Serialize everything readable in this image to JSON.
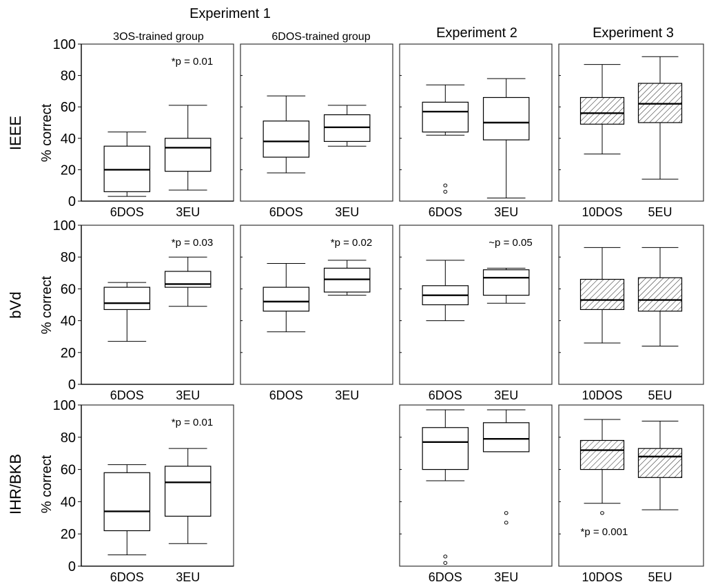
{
  "headers": {
    "experiment1": "Experiment 1",
    "experiment1_group_a": "3OS-trained group",
    "experiment1_group_b": "6DOS-trained group",
    "experiment2": "Experiment 2",
    "experiment3": "Experiment 3"
  },
  "row_labels": [
    "IEEE",
    "bVd",
    "IHR/BKB"
  ],
  "ylabel": "% correct",
  "colors": {
    "box_plain": "#ffffff",
    "box_hatched": "#d8d8d8",
    "line": "#000000"
  },
  "chart_data": [
    {
      "type": "box",
      "row": "IEEE",
      "column": "3OS-trained group",
      "ylim": [
        0,
        100
      ],
      "yticks": [
        0,
        20,
        40,
        60,
        80,
        100
      ],
      "categories": [
        "6DOS",
        "3EU"
      ],
      "annotation": "*p = 0.01",
      "annotation_position": "top-right",
      "boxes": [
        {
          "label": "6DOS",
          "min": 3,
          "q1": 6,
          "median": 20,
          "q3": 35,
          "max": 44,
          "outliers": [],
          "hatched": false
        },
        {
          "label": "3EU",
          "min": 7,
          "q1": 19,
          "median": 34,
          "q3": 40,
          "max": 61,
          "outliers": [],
          "hatched": false
        }
      ]
    },
    {
      "type": "box",
      "row": "IEEE",
      "column": "6DOS-trained group",
      "ylim": [
        0,
        100
      ],
      "categories": [
        "6DOS",
        "3EU"
      ],
      "annotation": "",
      "boxes": [
        {
          "label": "6DOS",
          "min": 18,
          "q1": 28,
          "median": 38,
          "q3": 51,
          "max": 67,
          "outliers": [],
          "hatched": false
        },
        {
          "label": "3EU",
          "min": 35,
          "q1": 38,
          "median": 47,
          "q3": 55,
          "max": 61,
          "outliers": [],
          "hatched": false
        }
      ]
    },
    {
      "type": "box",
      "row": "IEEE",
      "column": "Experiment 2",
      "ylim": [
        0,
        100
      ],
      "categories": [
        "6DOS",
        "3EU"
      ],
      "annotation": "",
      "boxes": [
        {
          "label": "6DOS",
          "min": 42,
          "q1": 44,
          "median": 57,
          "q3": 63,
          "max": 74,
          "outliers": [
            10,
            6
          ],
          "hatched": false
        },
        {
          "label": "3EU",
          "min": 2,
          "q1": 39,
          "median": 50,
          "q3": 66,
          "max": 78,
          "outliers": [],
          "hatched": false
        }
      ]
    },
    {
      "type": "box",
      "row": "IEEE",
      "column": "Experiment 3",
      "ylim": [
        0,
        100
      ],
      "categories": [
        "10DOS",
        "5EU"
      ],
      "annotation": "",
      "boxes": [
        {
          "label": "10DOS",
          "min": 30,
          "q1": 49,
          "median": 56,
          "q3": 66,
          "max": 87,
          "outliers": [],
          "hatched": true
        },
        {
          "label": "5EU",
          "min": 14,
          "q1": 50,
          "median": 62,
          "q3": 75,
          "max": 92,
          "outliers": [],
          "hatched": true
        }
      ]
    },
    {
      "type": "box",
      "row": "bVd",
      "column": "3OS-trained group",
      "ylim": [
        0,
        100
      ],
      "yticks": [
        0,
        20,
        40,
        60,
        80,
        100
      ],
      "categories": [
        "6DOS",
        "3EU"
      ],
      "annotation": "*p = 0.03",
      "annotation_position": "top-right",
      "boxes": [
        {
          "label": "6DOS",
          "min": 27,
          "q1": 47,
          "median": 51,
          "q3": 61,
          "max": 64,
          "outliers": [],
          "hatched": false
        },
        {
          "label": "3EU",
          "min": 49,
          "q1": 61,
          "median": 63,
          "q3": 71,
          "max": 80,
          "outliers": [],
          "hatched": false
        }
      ]
    },
    {
      "type": "box",
      "row": "bVd",
      "column": "6DOS-trained group",
      "ylim": [
        0,
        100
      ],
      "categories": [
        "6DOS",
        "3EU"
      ],
      "annotation": "*p = 0.02",
      "annotation_position": "top-right",
      "boxes": [
        {
          "label": "6DOS",
          "min": 33,
          "q1": 46,
          "median": 52,
          "q3": 61,
          "max": 76,
          "outliers": [],
          "hatched": false
        },
        {
          "label": "3EU",
          "min": 56,
          "q1": 58,
          "median": 66,
          "q3": 73,
          "max": 78,
          "outliers": [],
          "hatched": false
        }
      ]
    },
    {
      "type": "box",
      "row": "bVd",
      "column": "Experiment 2",
      "ylim": [
        0,
        100
      ],
      "categories": [
        "6DOS",
        "3EU"
      ],
      "annotation": "~p = 0.05",
      "annotation_position": "top-right",
      "boxes": [
        {
          "label": "6DOS",
          "min": 40,
          "q1": 50,
          "median": 56,
          "q3": 62,
          "max": 78,
          "outliers": [],
          "hatched": false
        },
        {
          "label": "3EU",
          "min": 51,
          "q1": 56,
          "median": 67,
          "q3": 72,
          "max": 73,
          "outliers": [],
          "hatched": false
        }
      ]
    },
    {
      "type": "box",
      "row": "bVd",
      "column": "Experiment 3",
      "ylim": [
        0,
        100
      ],
      "categories": [
        "10DOS",
        "5EU"
      ],
      "annotation": "",
      "boxes": [
        {
          "label": "10DOS",
          "min": 26,
          "q1": 47,
          "median": 53,
          "q3": 66,
          "max": 86,
          "outliers": [],
          "hatched": true
        },
        {
          "label": "5EU",
          "min": 24,
          "q1": 46,
          "median": 53,
          "q3": 67,
          "max": 86,
          "outliers": [],
          "hatched": true
        }
      ]
    },
    {
      "type": "box",
      "row": "IHR/BKB",
      "column": "3OS-trained group",
      "ylim": [
        0,
        100
      ],
      "yticks": [
        0,
        20,
        40,
        60,
        80,
        100
      ],
      "categories": [
        "6DOS",
        "3EU"
      ],
      "annotation": "*p = 0.01",
      "annotation_position": "top-right",
      "boxes": [
        {
          "label": "6DOS",
          "min": 7,
          "q1": 22,
          "median": 34,
          "q3": 58,
          "max": 63,
          "outliers": [],
          "hatched": false
        },
        {
          "label": "3EU",
          "min": 14,
          "q1": 31,
          "median": 52,
          "q3": 62,
          "max": 73,
          "outliers": [],
          "hatched": false
        }
      ]
    },
    {
      "type": "box",
      "row": "IHR/BKB",
      "column": "Experiment 2",
      "ylim": [
        0,
        100
      ],
      "categories": [
        "6DOS",
        "3EU"
      ],
      "annotation": "",
      "boxes": [
        {
          "label": "6DOS",
          "min": 53,
          "q1": 60,
          "median": 77,
          "q3": 86,
          "max": 97,
          "outliers": [
            6,
            2
          ],
          "hatched": false
        },
        {
          "label": "3EU",
          "min": 71,
          "q1": 71,
          "median": 79,
          "q3": 89,
          "max": 97,
          "outliers": [
            33,
            27
          ],
          "hatched": false
        }
      ]
    },
    {
      "type": "box",
      "row": "IHR/BKB",
      "column": "Experiment 3",
      "ylim": [
        0,
        100
      ],
      "categories": [
        "10DOS",
        "5EU"
      ],
      "annotation": "*p = 0.001",
      "annotation_position": "bottom-left",
      "boxes": [
        {
          "label": "10DOS",
          "min": 39,
          "q1": 60,
          "median": 72,
          "q3": 78,
          "max": 91,
          "outliers": [
            33
          ],
          "hatched": true
        },
        {
          "label": "5EU",
          "min": 35,
          "q1": 55,
          "median": 68,
          "q3": 73,
          "max": 90,
          "outliers": [],
          "hatched": true
        }
      ]
    }
  ]
}
